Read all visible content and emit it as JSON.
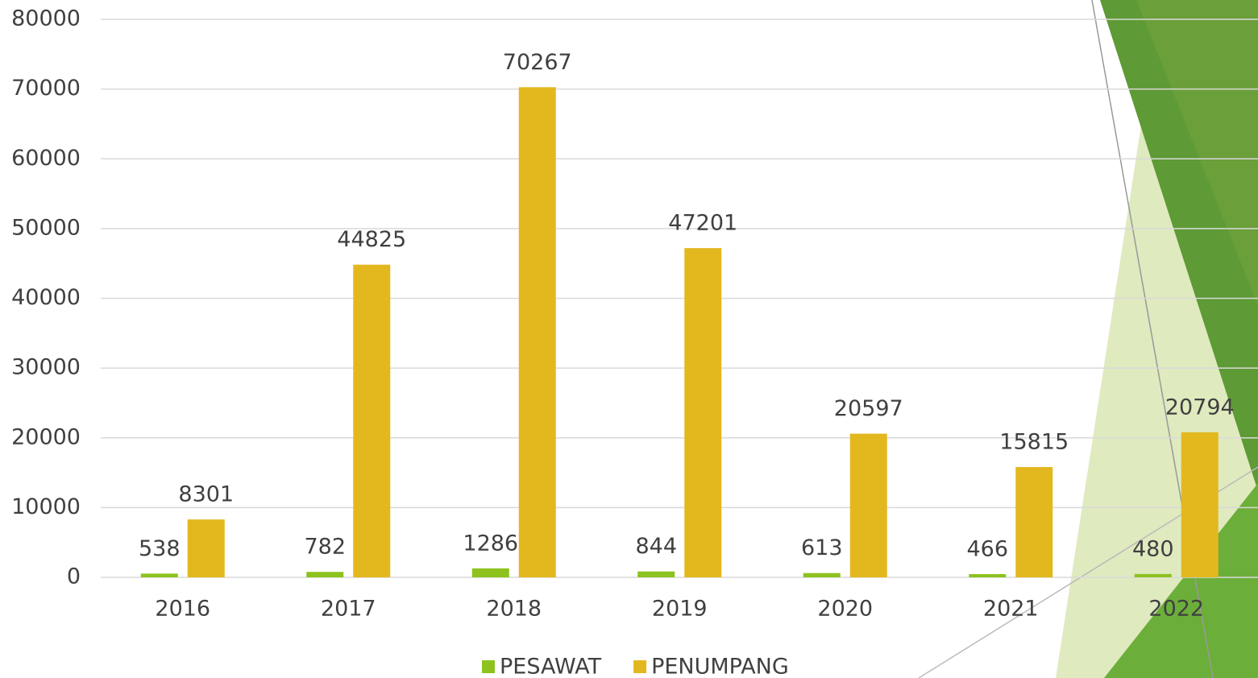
{
  "chart_data": {
    "type": "bar",
    "categories": [
      "2016",
      "2017",
      "2018",
      "2019",
      "2020",
      "2021",
      "2022"
    ],
    "series": [
      {
        "name": "PESAWAT",
        "color": "#8dc21f",
        "values": [
          538,
          782,
          1286,
          844,
          613,
          466,
          480
        ]
      },
      {
        "name": "PENUMPANG",
        "color": "#e3b81f",
        "values": [
          8301,
          44825,
          70267,
          47201,
          20597,
          15815,
          20794
        ]
      }
    ],
    "ylim": [
      0,
      80000
    ],
    "yticks": [
      0,
      10000,
      20000,
      30000,
      40000,
      50000,
      60000,
      70000,
      80000
    ],
    "grid": true,
    "legend": "bottom"
  }
}
